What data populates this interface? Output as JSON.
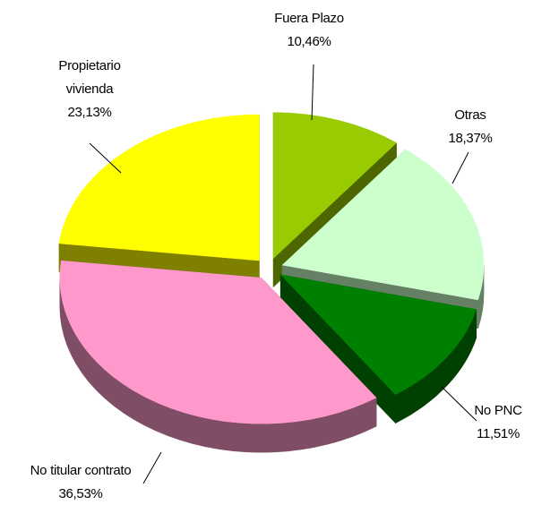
{
  "chart_data": {
    "type": "pie",
    "categories": [
      "Fuera Plazo",
      "Otras",
      "No PNC",
      "No titular contrato",
      "Propietario vivienda"
    ],
    "values": [
      10.46,
      18.37,
      11.51,
      36.53,
      23.13
    ],
    "value_labels": [
      "10,46%",
      "18,37%",
      "11,51%",
      "36,53%",
      "23,13%"
    ],
    "colors": [
      "#99cc00",
      "#ccffcc",
      "#008000",
      "#ff99cc",
      "#ffff00"
    ]
  }
}
